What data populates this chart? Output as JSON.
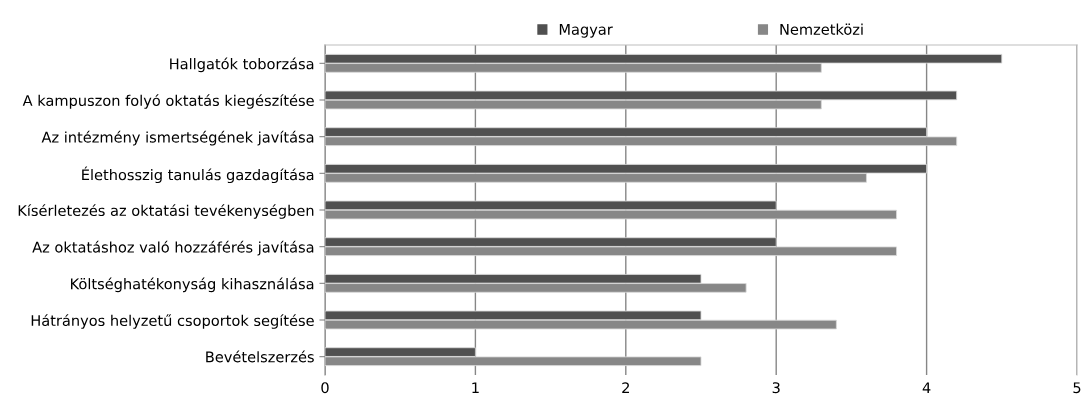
{
  "chart_data": {
    "type": "bar",
    "orientation": "horizontal",
    "categories": [
      "Hallgatók toborzása",
      "A kampuszon folyó oktatás kiegészítése",
      "Az intézmény ismertségének javítása",
      "Élethosszig tanulás gazdagítása",
      "Kísérletezés az oktatási tevékenységben",
      "Az oktatáshoz való hozzáférés javítása",
      "Költséghatékonyság kihasználása",
      "Hátrányos helyzetű csoportok segítése",
      "Bevételszerzés"
    ],
    "series": [
      {
        "name": "Magyar",
        "color": "#505050",
        "values": [
          4.5,
          4.2,
          4,
          4,
          3,
          3,
          2.5,
          2.5,
          1
        ]
      },
      {
        "name": "Nemzetközi",
        "color": "#878787",
        "values": [
          3.3,
          3.3,
          4.2,
          3.6,
          3.8,
          3.8,
          2.8,
          3.4,
          2.5
        ]
      }
    ],
    "xlim": [
      0,
      5
    ],
    "xticks": [
      0,
      1,
      2,
      3,
      4,
      5
    ],
    "grid": "x",
    "legend": "top"
  }
}
